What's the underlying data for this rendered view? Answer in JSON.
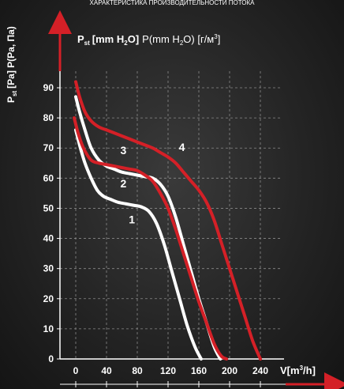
{
  "chart_data": {
    "type": "line",
    "title": "ХАРАКТЕРИСТИКА ПРОИЗВОДИТЕЛЬНОСТИ ПОТОКА",
    "ylabel_side": "P st [Pa] P(Pa, Па)",
    "ylabel_side_main": "P",
    "ylabel_side_sub": "st",
    "ylabel_side_rest": "[Pa] P(Pa, Па)",
    "ylabel_top": "P st [mm H2O] P(mm H2O) [г/м³]",
    "ylabel_top_main": "P",
    "ylabel_top_sub": "st",
    "ylabel_top_bold": "[mm H",
    "ylabel_top_bold2": "O]",
    "ylabel_top_rest": "P(mm H",
    "ylabel_top_rest2": "O) [г/м",
    "ylabel_top_rest3": "]",
    "ylabel_top_h2o_sub": "2",
    "ylabel_top_cube": "3",
    "xlabel": "V[m³/h]",
    "xlabel_main": "V[m",
    "xlabel_sup": "3",
    "xlabel_end": "/h]",
    "x_ticks": [
      "0",
      "40",
      "80",
      "120",
      "160",
      "200",
      "240"
    ],
    "y_ticks": [
      "0",
      "10",
      "20",
      "30",
      "40",
      "50",
      "60",
      "70",
      "80",
      "90"
    ],
    "xlim": [
      0,
      240
    ],
    "ylim": [
      0,
      90
    ],
    "grid": true,
    "series": [
      {
        "name": "1",
        "color": "#ffffff",
        "x": [
          0,
          5,
          12,
          20,
          28,
          36,
          45,
          55,
          65,
          75,
          85,
          95,
          105,
          115,
          125,
          135,
          145,
          155,
          163
        ],
        "y": [
          76,
          71,
          65,
          60,
          56,
          54,
          53,
          52,
          51.5,
          51,
          50.5,
          49,
          45,
          38,
          29,
          20,
          11,
          4,
          0
        ]
      },
      {
        "name": "2",
        "color": "#ffffff",
        "x": [
          0,
          5,
          12,
          20,
          30,
          40,
          50,
          60,
          70,
          80,
          90,
          100,
          110,
          120,
          130,
          140,
          150,
          160,
          170,
          180,
          188
        ],
        "y": [
          87,
          82,
          76,
          70,
          66,
          64,
          63,
          62,
          61.5,
          61,
          60.5,
          60,
          58,
          54,
          47,
          38,
          29,
          20,
          12,
          4,
          0
        ]
      },
      {
        "name": "3",
        "color": "#d42027",
        "x": [
          -2,
          3,
          10,
          20,
          30,
          40,
          50,
          60,
          70,
          80,
          90,
          100,
          110,
          120,
          130,
          140,
          150,
          160,
          170,
          180,
          189,
          196
        ],
        "y": [
          80,
          75,
          70,
          66,
          65,
          64.5,
          64,
          63.5,
          63,
          62.5,
          61,
          59,
          55,
          50,
          43,
          35,
          27,
          19,
          12,
          5,
          1,
          0
        ]
      },
      {
        "name": "4",
        "color": "#d42027",
        "x": [
          0,
          5,
          12,
          20,
          30,
          40,
          50,
          60,
          70,
          80,
          90,
          100,
          110,
          120,
          130,
          140,
          150,
          160,
          170,
          180,
          190,
          200,
          210,
          220,
          230,
          240
        ],
        "y": [
          92,
          87,
          82,
          79,
          77,
          76,
          75,
          74,
          73,
          72,
          71,
          70,
          68.5,
          67,
          65,
          62,
          59,
          56,
          52,
          46,
          38,
          30,
          22,
          14,
          6,
          0
        ]
      }
    ],
    "series_labels": [
      {
        "text": "1",
        "x": 73,
        "y": 45
      },
      {
        "text": "2",
        "x": 62,
        "y": 57
      },
      {
        "text": "3",
        "x": 62,
        "y": 68
      },
      {
        "text": "4",
        "x": 138,
        "y": 69
      }
    ]
  }
}
